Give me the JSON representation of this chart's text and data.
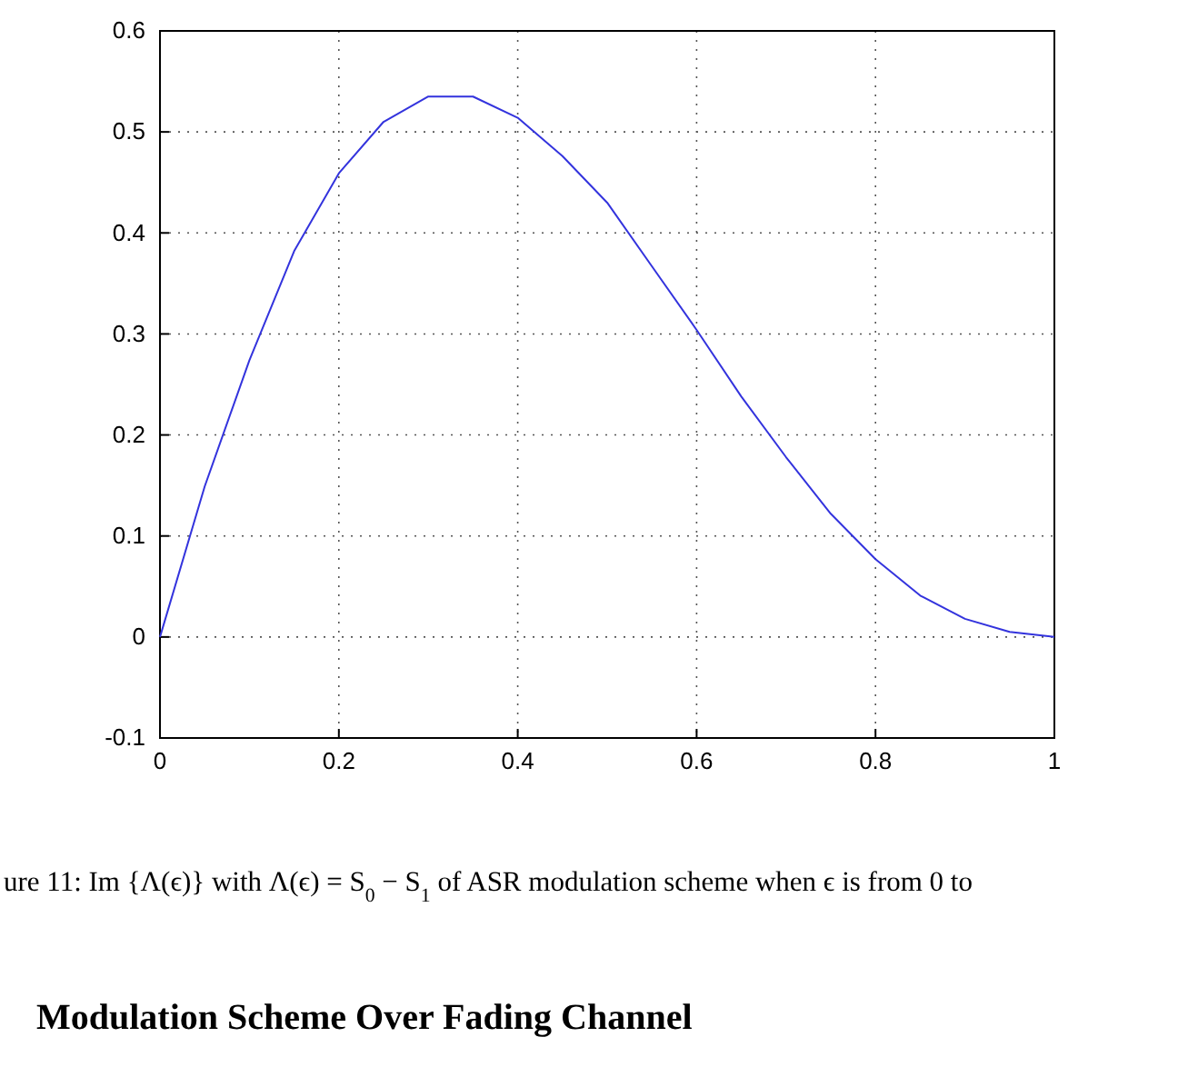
{
  "chart_data": {
    "type": "line",
    "x": [
      0,
      0.05,
      0.1,
      0.15,
      0.2,
      0.25,
      0.3,
      0.35,
      0.4,
      0.45,
      0.5,
      0.55,
      0.6,
      0.65,
      0.7,
      0.75,
      0.8,
      0.85,
      0.9,
      0.95,
      1
    ],
    "series": [
      {
        "color": "#3333dd",
        "values": [
          0,
          0.149,
          0.274,
          0.382,
          0.459,
          0.51,
          0.535,
          0.535,
          0.514,
          0.476,
          0.43,
          0.367,
          0.304,
          0.238,
          0.178,
          0.122,
          0.077,
          0.041,
          0.018,
          0.005,
          0
        ]
      }
    ],
    "xlim": [
      0,
      1
    ],
    "ylim": [
      -0.1,
      0.6
    ],
    "xticks": [
      0,
      0.2,
      0.4,
      0.6,
      0.8,
      1
    ],
    "yticks": [
      -0.1,
      0,
      0.1,
      0.2,
      0.3,
      0.4,
      0.5,
      0.6
    ],
    "grid": true,
    "line_style": "solid",
    "marker": "none",
    "annotations": [
      "ure 11: Im {Λ(ϵ)} with Λ(ϵ) = S$_{0}$ − S$_{1}$ of ASR modulation scheme when ϵ is from 0 to",
      "Modulation Scheme Over Fading Channel"
    ]
  }
}
